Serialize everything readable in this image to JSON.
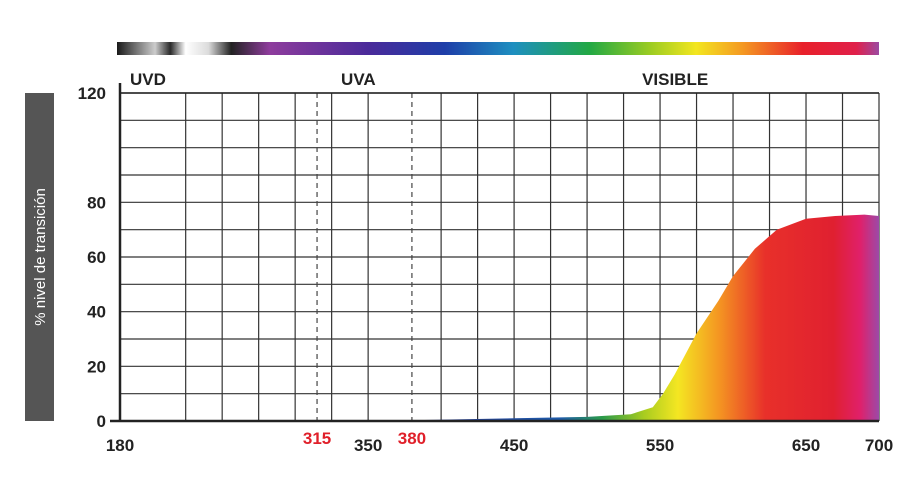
{
  "chart_data": {
    "type": "area",
    "ylabel": "% nivel de transición",
    "xlim": [
      180,
      700
    ],
    "ylim": [
      0,
      120
    ],
    "x_ticks": [
      180,
      350,
      450,
      550,
      650,
      700
    ],
    "y_ticks": [
      0,
      20,
      40,
      60,
      80,
      120
    ],
    "markers": [
      {
        "label": "315",
        "x": 315,
        "color": "#e0202a"
      },
      {
        "label": "380",
        "x": 380,
        "color": "#e0202a"
      }
    ],
    "regions": [
      {
        "label": "UVD",
        "x_from": 180,
        "x_to": 315
      },
      {
        "label": "UVA",
        "x_from": 315,
        "x_to": 380
      },
      {
        "label": "VISIBLE",
        "x_from": 380,
        "x_to": 700
      }
    ],
    "x": [
      180,
      315,
      380,
      450,
      500,
      530,
      545,
      552,
      560,
      575,
      590,
      600,
      615,
      630,
      650,
      670,
      690,
      700
    ],
    "values": [
      0,
      0,
      0.3,
      1,
      1.5,
      2.5,
      5,
      10,
      17,
      32,
      44,
      53,
      63,
      70,
      74,
      75,
      75.5,
      75
    ],
    "grid": true
  },
  "colors": {
    "axis_label_band": "#555555",
    "grid": "#333333",
    "tick_text": "#222222",
    "marker_text": "#e0202a"
  }
}
